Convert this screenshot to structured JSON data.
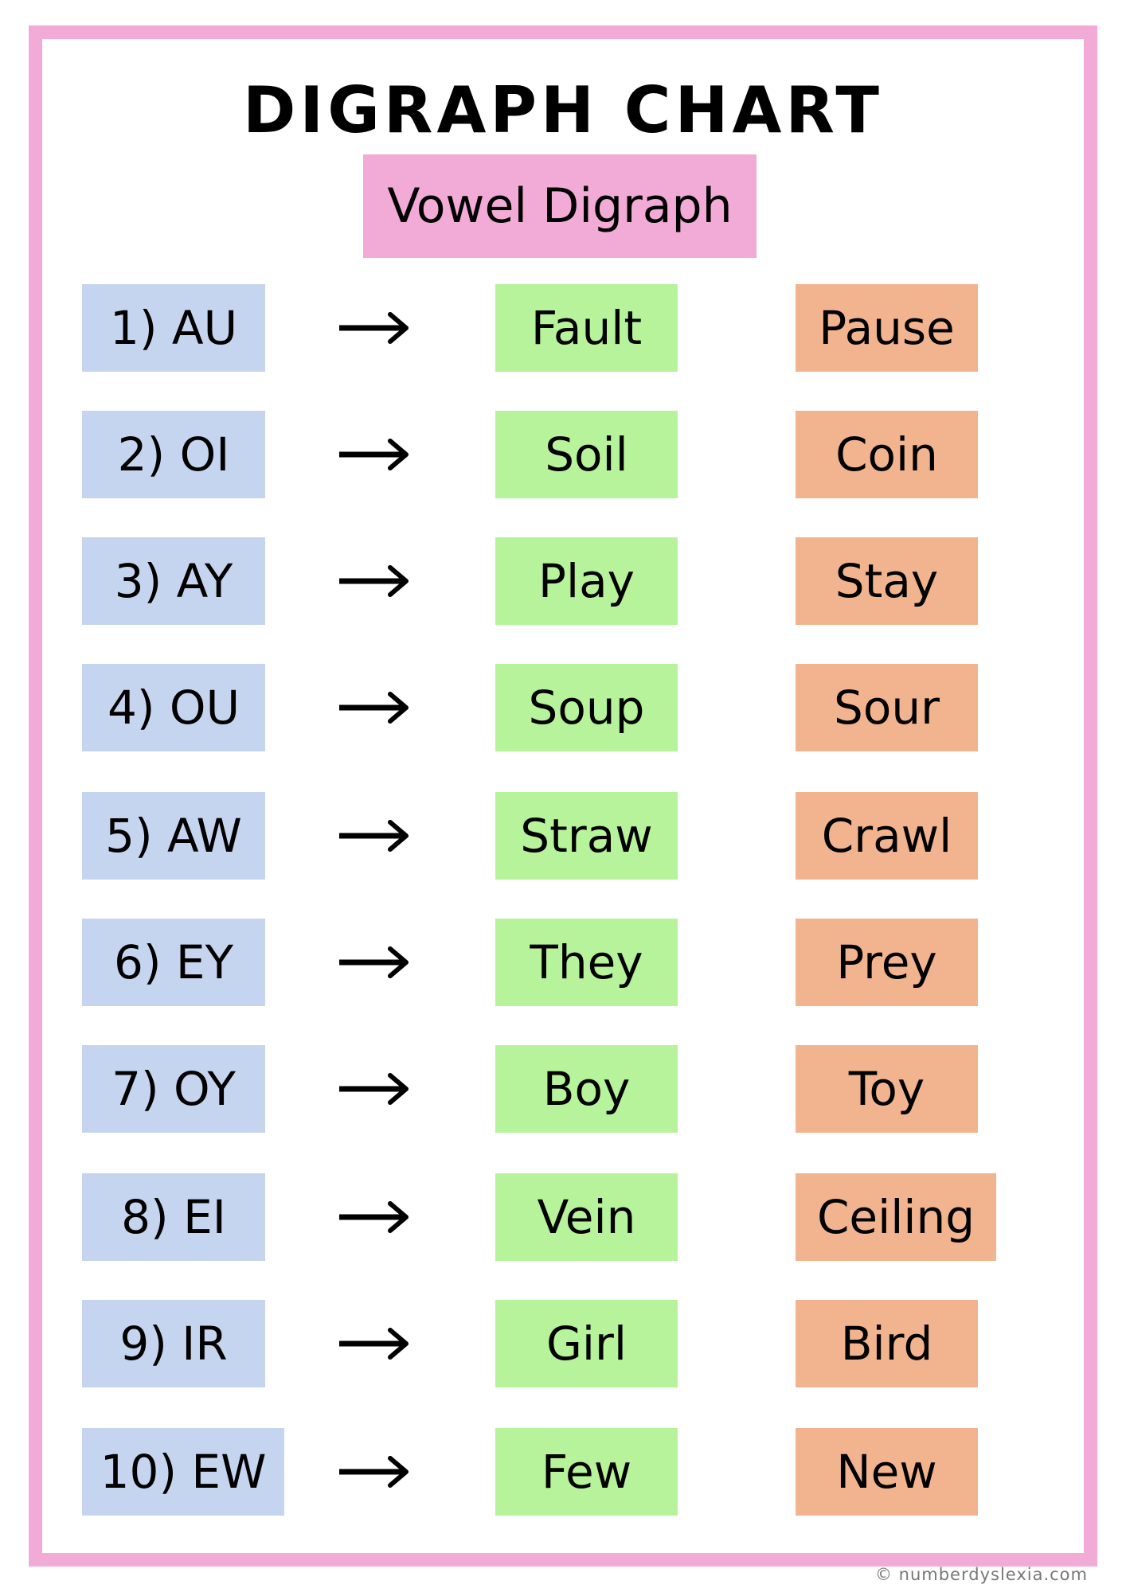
{
  "title": "DIGRAPH CHART",
  "subtitle": "Vowel Digraph",
  "colors": {
    "border": "#f2aad6",
    "digraph": "#c6d5ef",
    "example1": "#b6f39a",
    "example2": "#f2b48f"
  },
  "arrow_icon": "right-arrow",
  "rows": [
    {
      "digraph": "1) AU",
      "word1": "Fault",
      "word2": "Pause"
    },
    {
      "digraph": "2) OI",
      "word1": "Soil",
      "word2": "Coin"
    },
    {
      "digraph": "3) AY",
      "word1": "Play",
      "word2": "Stay"
    },
    {
      "digraph": "4) OU",
      "word1": "Soup",
      "word2": "Sour"
    },
    {
      "digraph": "5) AW",
      "word1": "Straw",
      "word2": "Crawl"
    },
    {
      "digraph": "6) EY",
      "word1": "They",
      "word2": "Prey"
    },
    {
      "digraph": "7) OY",
      "word1": "Boy",
      "word2": "Toy"
    },
    {
      "digraph": "8) EI",
      "word1": "Vein",
      "word2": "Ceiling"
    },
    {
      "digraph": "9) IR",
      "word1": "Girl",
      "word2": "Bird"
    },
    {
      "digraph": "10) EW",
      "word1": "Few",
      "word2": "New"
    }
  ],
  "footer": "numberdyslexia.com"
}
